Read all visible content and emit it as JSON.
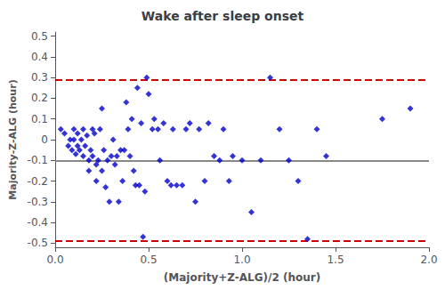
{
  "chart_data": {
    "type": "scatter",
    "title": "Wake after sleep onset",
    "xlabel": "(Majority+Z-ALG)/2 (hour)",
    "ylabel": "Majority-Z-ALG (hour)",
    "color": "#0000CC",
    "marker": "diamond",
    "grid": false,
    "xlim": [
      0,
      2
    ],
    "ylim": [
      -0.52,
      0.52
    ],
    "xticks": [
      {
        "value": 0,
        "label": "0.0"
      },
      0.5,
      {
        "value": 1.0,
        "label": "1.0"
      },
      1.5,
      {
        "value": 2.0,
        "label": "2.0"
      }
    ],
    "yticks": [
      -0.5,
      -0.4,
      -0.3,
      -0.2,
      -0.1,
      0,
      0.1,
      0.2,
      0.3,
      0.4,
      0.5
    ],
    "reference_lines": [
      {
        "y": -0.099,
        "color": "#888888",
        "line_style": "solid"
      },
      {
        "y": 0.295,
        "color": "#CC0000",
        "line_style": "dashed"
      },
      {
        "y": -0.493,
        "color": "#CC0000",
        "line_style": "dashed"
      }
    ],
    "x": [
      0.03,
      0.05,
      0.07,
      0.08,
      0.09,
      0.1,
      0.1,
      0.11,
      0.12,
      0.12,
      0.13,
      0.14,
      0.15,
      0.15,
      0.16,
      0.17,
      0.18,
      0.18,
      0.19,
      0.2,
      0.2,
      0.21,
      0.22,
      0.22,
      0.23,
      0.24,
      0.25,
      0.25,
      0.26,
      0.27,
      0.28,
      0.29,
      0.3,
      0.31,
      0.32,
      0.33,
      0.34,
      0.35,
      0.36,
      0.37,
      0.38,
      0.39,
      0.4,
      0.41,
      0.42,
      0.43,
      0.44,
      0.45,
      0.46,
      0.47,
      0.48,
      0.49,
      0.5,
      0.52,
      0.53,
      0.55,
      0.56,
      0.58,
      0.6,
      0.62,
      0.63,
      0.65,
      0.68,
      0.7,
      0.72,
      0.75,
      0.77,
      0.8,
      0.82,
      0.85,
      0.88,
      0.9,
      0.93,
      0.95,
      1.0,
      1.05,
      1.1,
      1.15,
      1.2,
      1.25,
      1.3,
      1.35,
      1.4,
      1.45,
      1.75,
      1.9
    ],
    "values": [
      0.05,
      0.03,
      -0.03,
      0.0,
      -0.05,
      0.05,
      0.0,
      -0.07,
      0.03,
      -0.03,
      -0.05,
      0.0,
      0.05,
      -0.08,
      -0.03,
      0.02,
      -0.1,
      -0.15,
      -0.05,
      0.05,
      -0.08,
      0.03,
      -0.12,
      -0.2,
      -0.1,
      0.05,
      0.15,
      -0.15,
      -0.05,
      -0.23,
      -0.1,
      -0.3,
      -0.08,
      0.0,
      -0.12,
      -0.08,
      -0.3,
      -0.05,
      -0.2,
      -0.05,
      0.18,
      0.05,
      -0.08,
      0.1,
      -0.15,
      -0.22,
      0.25,
      -0.22,
      0.08,
      -0.47,
      -0.25,
      0.3,
      0.22,
      0.05,
      0.1,
      0.05,
      -0.1,
      0.08,
      -0.2,
      -0.22,
      0.05,
      -0.22,
      -0.22,
      0.05,
      0.08,
      -0.3,
      0.05,
      -0.2,
      0.08,
      -0.08,
      -0.1,
      0.05,
      -0.2,
      -0.08,
      -0.1,
      -0.35,
      -0.1,
      0.3,
      0.05,
      -0.1,
      -0.2,
      -0.48,
      0.05,
      -0.08,
      0.1,
      0.15
    ]
  }
}
